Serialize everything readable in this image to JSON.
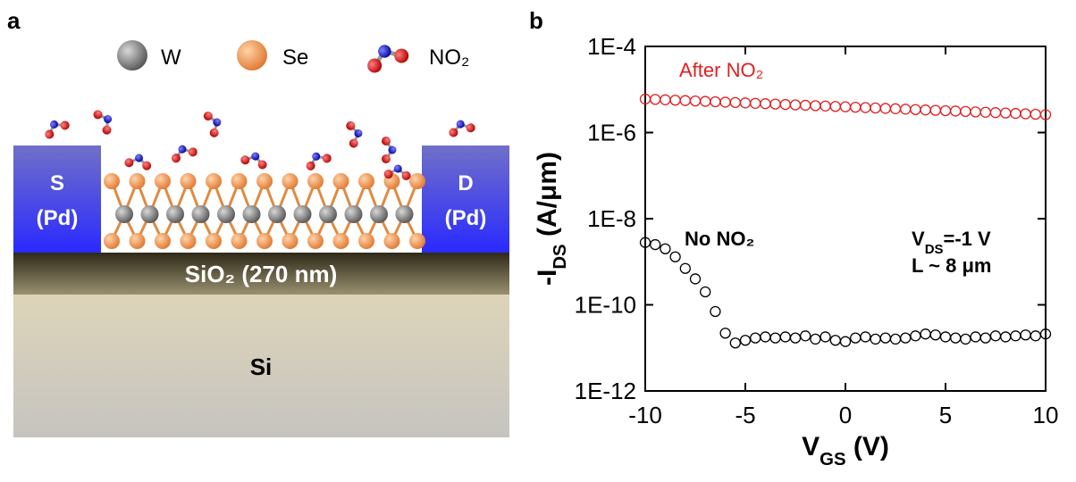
{
  "panel_labels": [
    "a",
    "b"
  ],
  "diagram": {
    "legend": [
      "W",
      "Se",
      "NO₂"
    ],
    "source": [
      "S",
      "(Pd)"
    ],
    "drain": [
      "D",
      "(Pd)"
    ],
    "oxide": "SiO₂ (270 nm)",
    "substrate": "Si"
  },
  "chart_data": {
    "type": "scatter",
    "x": [
      -10,
      -9.5,
      -9,
      -8.5,
      -8,
      -7.5,
      -7,
      -6.5,
      -6,
      -5.5,
      -5,
      -4.5,
      -4,
      -3.5,
      -3,
      -2.5,
      -2,
      -1.5,
      -1,
      -0.5,
      0,
      0.5,
      1,
      1.5,
      2,
      2.5,
      3,
      3.5,
      4,
      4.5,
      5,
      5.5,
      6,
      6.5,
      7,
      7.5,
      8,
      8.5,
      9,
      9.5,
      10
    ],
    "series": [
      {
        "name": "After NO₂",
        "color": "#e02020",
        "values": [
          6e-06,
          5.88e-06,
          5.76e-06,
          5.64e-06,
          5.52e-06,
          5.41e-06,
          5.3e-06,
          5.19e-06,
          5.08e-06,
          4.98e-06,
          4.87e-06,
          4.77e-06,
          4.67e-06,
          4.58e-06,
          4.48e-06,
          4.39e-06,
          4.3e-06,
          4.21e-06,
          4.13e-06,
          4.04e-06,
          3.96e-06,
          3.88e-06,
          3.8e-06,
          3.72e-06,
          3.64e-06,
          3.57e-06,
          3.49e-06,
          3.42e-06,
          3.35e-06,
          3.28e-06,
          3.22e-06,
          3.15e-06,
          3.09e-06,
          3.02e-06,
          2.96e-06,
          2.9e-06,
          2.84e-06,
          2.78e-06,
          2.72e-06,
          2.66e-06,
          2.6e-06
        ]
      },
      {
        "name": "No NO₂",
        "color": "#000000",
        "values": [
          2.8e-09,
          2.5e-09,
          2e-09,
          1.3e-09,
          7e-10,
          4e-10,
          2e-10,
          7e-11,
          2.2e-11,
          1.3e-11,
          1.5e-11,
          1.7e-11,
          1.8e-11,
          1.7e-11,
          1.8e-11,
          1.7e-11,
          1.9e-11,
          1.6e-11,
          1.8e-11,
          1.5e-11,
          1.4e-11,
          1.7e-11,
          1.8e-11,
          1.6e-11,
          1.7e-11,
          1.6e-11,
          1.7e-11,
          1.9e-11,
          2.1e-11,
          2e-11,
          1.8e-11,
          1.7e-11,
          1.6e-11,
          1.8e-11,
          1.7e-11,
          1.9e-11,
          1.8e-11,
          1.9e-11,
          2e-11,
          1.9e-11,
          2.1e-11
        ]
      }
    ],
    "xlim": [
      -10,
      10
    ],
    "xticks": [
      -10,
      -5,
      0,
      5,
      10
    ],
    "ylim": [
      1e-12,
      0.0001
    ],
    "log_y": true,
    "yticks": [
      {
        "value": 1e-12,
        "label": "1E-12"
      },
      {
        "value": 1e-10,
        "label": "1E-10"
      },
      {
        "value": 1e-08,
        "label": "1E-8"
      },
      {
        "value": 1e-06,
        "label": "1E-6"
      },
      {
        "value": 0.0001,
        "label": "1E-4"
      }
    ],
    "xlabel": [
      "V",
      "GS",
      " (V)"
    ],
    "ylabel": [
      "-I",
      "DS",
      " (A/μm)"
    ],
    "annotations": [
      [
        "V",
        "DS",
        "=-1 V"
      ],
      [
        "L ~ 8 μm"
      ]
    ]
  }
}
